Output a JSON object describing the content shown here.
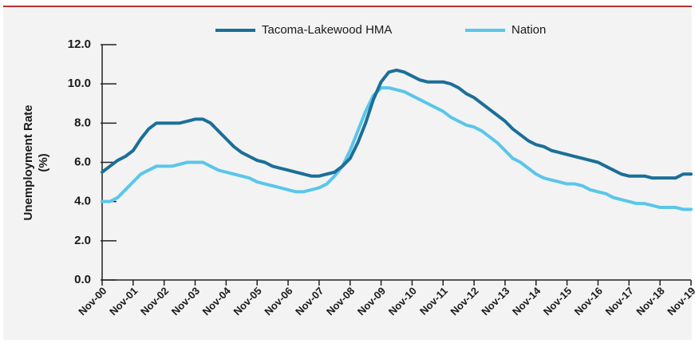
{
  "chart_data": {
    "type": "line",
    "y_label": [
      "Unemployment Rate",
      "(%)"
    ],
    "legend": "top",
    "x": [
      0,
      3,
      6,
      9,
      12,
      15,
      18,
      21,
      24,
      27,
      30,
      33,
      36,
      39,
      42,
      45,
      48,
      51,
      54,
      57,
      60,
      63,
      66,
      69,
      72,
      75,
      78,
      81,
      84,
      87,
      90,
      93,
      96,
      99,
      102,
      105,
      108,
      111,
      114,
      117,
      120,
      123,
      126,
      129,
      132,
      135,
      138,
      141,
      144,
      147,
      150,
      153,
      156,
      159,
      162,
      165,
      168,
      171,
      174,
      177,
      180,
      183,
      186,
      189,
      192,
      195,
      198,
      201,
      204,
      207,
      210,
      213,
      216,
      219,
      222,
      225,
      228
    ],
    "xlim": [
      0,
      228
    ],
    "xticks": [
      {
        "value": 0,
        "label": "Nov-00"
      },
      {
        "value": 12,
        "label": "Nov-01"
      },
      {
        "value": 24,
        "label": "Nov-02"
      },
      {
        "value": 36,
        "label": "Nov-03"
      },
      {
        "value": 48,
        "label": "Nov-04"
      },
      {
        "value": 60,
        "label": "Nov-05"
      },
      {
        "value": 72,
        "label": "Nov-06"
      },
      {
        "value": 84,
        "label": "Nov-07"
      },
      {
        "value": 96,
        "label": "Nov-08"
      },
      {
        "value": 108,
        "label": "Nov-09"
      },
      {
        "value": 120,
        "label": "Nov-10"
      },
      {
        "value": 132,
        "label": "Nov-11"
      },
      {
        "value": 144,
        "label": "Nov-12"
      },
      {
        "value": 156,
        "label": "Nov-13"
      },
      {
        "value": 168,
        "label": "Nov-14"
      },
      {
        "value": 180,
        "label": "Nov-15"
      },
      {
        "value": 192,
        "label": "Nov-16"
      },
      {
        "value": 204,
        "label": "Nov-17"
      },
      {
        "value": 216,
        "label": "Nov-18"
      },
      {
        "value": 228,
        "label": "Nov-19"
      }
    ],
    "ylim": [
      0,
      12
    ],
    "yticks": [
      {
        "value": 0,
        "label": "0.0"
      },
      {
        "value": 2,
        "label": "2.0"
      },
      {
        "value": 4,
        "label": "4.0"
      },
      {
        "value": 6,
        "label": "6.0"
      },
      {
        "value": 8,
        "label": "8.0"
      },
      {
        "value": 10,
        "label": "10.0"
      },
      {
        "value": 12,
        "label": "12.0"
      }
    ],
    "series": [
      {
        "name": "Tacoma-Lakewood HMA",
        "color": "#1b6f98",
        "values": [
          5.5,
          5.8,
          6.1,
          6.3,
          6.6,
          7.2,
          7.7,
          8.0,
          8.0,
          8.0,
          8.0,
          8.1,
          8.2,
          8.2,
          8.0,
          7.6,
          7.2,
          6.8,
          6.5,
          6.3,
          6.1,
          6.0,
          5.8,
          5.7,
          5.6,
          5.5,
          5.4,
          5.3,
          5.3,
          5.4,
          5.5,
          5.8,
          6.2,
          7.0,
          8.0,
          9.2,
          10.1,
          10.6,
          10.7,
          10.6,
          10.4,
          10.2,
          10.1,
          10.1,
          10.1,
          10.0,
          9.8,
          9.5,
          9.3,
          9.0,
          8.7,
          8.4,
          8.1,
          7.7,
          7.4,
          7.1,
          6.9,
          6.8,
          6.6,
          6.5,
          6.4,
          6.3,
          6.2,
          6.1,
          6.0,
          5.8,
          5.6,
          5.4,
          5.3,
          5.3,
          5.3,
          5.2,
          5.2,
          5.2,
          5.2,
          5.4,
          5.4
        ]
      },
      {
        "name": "Nation",
        "color": "#5ac6ea",
        "values": [
          4.0,
          4.0,
          4.2,
          4.6,
          5.0,
          5.4,
          5.6,
          5.8,
          5.8,
          5.8,
          5.9,
          6.0,
          6.0,
          6.0,
          5.8,
          5.6,
          5.5,
          5.4,
          5.3,
          5.2,
          5.0,
          4.9,
          4.8,
          4.7,
          4.6,
          4.5,
          4.5,
          4.6,
          4.7,
          4.9,
          5.3,
          5.8,
          6.6,
          7.6,
          8.6,
          9.4,
          9.8,
          9.8,
          9.7,
          9.6,
          9.4,
          9.2,
          9.0,
          8.8,
          8.6,
          8.3,
          8.1,
          7.9,
          7.8,
          7.6,
          7.3,
          7.0,
          6.6,
          6.2,
          6.0,
          5.7,
          5.4,
          5.2,
          5.1,
          5.0,
          4.9,
          4.9,
          4.8,
          4.6,
          4.5,
          4.4,
          4.2,
          4.1,
          4.0,
          3.9,
          3.9,
          3.8,
          3.7,
          3.7,
          3.7,
          3.6,
          3.6
        ]
      }
    ]
  }
}
